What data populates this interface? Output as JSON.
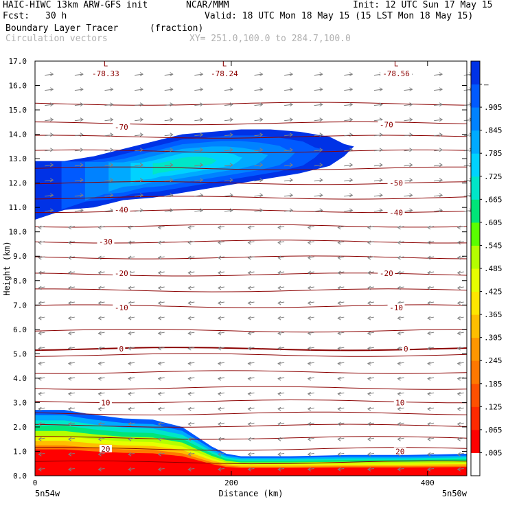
{
  "header": {
    "model": "HAIC-HIWC 13km ARW-GFS init",
    "org": "NCAR/MMM",
    "init": "Init: 12 UTC Sun 17 May 15",
    "fcst_label": "Fcst:",
    "fcst_value": "30 h",
    "valid": "Valid: 18 UTC Mon 18 May 15 (15 LST Mon 18 May 15)",
    "field": "Boundary Layer Tracer",
    "units": "(fraction)",
    "vectors": "Circulation vectors",
    "xy": "XY= 251.0,100.0 to 284.7,100.0"
  },
  "colors": {
    "contour": "#8b0000",
    "vector": "#7f7f7f",
    "colorbar": [
      "#ffffff",
      "#ff0000",
      "#ff2a00",
      "#ff5000",
      "#ff7800",
      "#ff9600",
      "#ffbe00",
      "#ffe600",
      "#e6ff00",
      "#b4ff00",
      "#5aff00",
      "#00e678",
      "#00e6c8",
      "#00d2ff",
      "#00aaff",
      "#0082ff",
      "#005aff",
      "#0032e6"
    ]
  },
  "chart_data": {
    "type": "heatmap",
    "title": "Boundary Layer Tracer",
    "ylabel": "Height (km)",
    "xlabel": "Distance (km)",
    "xlim": [
      0,
      440
    ],
    "ylim": [
      0,
      17
    ],
    "x_ticks": [
      "0",
      "200",
      "400"
    ],
    "x_endpoints": [
      "5n54w",
      "5n50w"
    ],
    "y_ticks": [
      "0.0",
      "1.0",
      "2.0",
      "3.0",
      "4.0",
      "5.0",
      "6.0",
      "7.0",
      "8.0",
      "9.0",
      "10.0",
      "11.0",
      "12.0",
      "13.0",
      "14.0",
      "15.0",
      "16.0",
      "17.0"
    ],
    "colorbar_labels": [
      ".005",
      ".065",
      ".125",
      ".185",
      ".245",
      ".305",
      ".365",
      ".425",
      ".485",
      ".545",
      ".605",
      ".665",
      ".725",
      ".785",
      ".845",
      ".905",
      "–"
    ],
    "contour_labels": [
      {
        "text": "-78.33",
        "x": 72,
        "y": 16.5
      },
      {
        "text": "-78.24",
        "x": 193,
        "y": 16.5
      },
      {
        "text": "-78.56",
        "x": 368,
        "y": 16.5
      },
      {
        "text": "L",
        "x": 72,
        "y": 16.9
      },
      {
        "text": "L",
        "x": 193,
        "y": 16.9
      },
      {
        "text": "L",
        "x": 368,
        "y": 16.9
      },
      {
        "text": "-70",
        "x": 88,
        "y": 14.3
      },
      {
        "text": "-70",
        "x": 358,
        "y": 14.4
      },
      {
        "text": "-50",
        "x": 368,
        "y": 12.0
      },
      {
        "text": "-40",
        "x": 88,
        "y": 10.9
      },
      {
        "text": "-40",
        "x": 368,
        "y": 10.8
      },
      {
        "text": "-30",
        "x": 72,
        "y": 9.6
      },
      {
        "text": "-20",
        "x": 88,
        "y": 8.3
      },
      {
        "text": "-20",
        "x": 358,
        "y": 8.3
      },
      {
        "text": "-10",
        "x": 88,
        "y": 6.9
      },
      {
        "text": "-10",
        "x": 368,
        "y": 6.9
      },
      {
        "text": "0",
        "x": 88,
        "y": 5.2
      },
      {
        "text": "0",
        "x": 378,
        "y": 5.2
      },
      {
        "text": "10",
        "x": 72,
        "y": 3.0
      },
      {
        "text": "10",
        "x": 372,
        "y": 3.0
      },
      {
        "text": "20",
        "x": 72,
        "y": 1.1
      },
      {
        "text": "20",
        "x": 372,
        "y": 1.0
      }
    ],
    "contour_levels_y": [
      0.55,
      1.1,
      1.55,
      2.05,
      2.55,
      3.05,
      3.6,
      4.25,
      4.95,
      5.2,
      5.95,
      6.95,
      7.6,
      8.25,
      8.95,
      9.6,
      10.25,
      10.85,
      11.4,
      12.0,
      12.6,
      13.3,
      13.9,
      14.45,
      15.25
    ],
    "plume_upper": {
      "x": [
        0,
        30,
        60,
        90,
        120,
        150,
        180,
        210,
        240,
        270,
        300,
        315,
        325,
        315,
        300,
        270,
        240,
        210,
        180,
        150,
        120,
        90,
        60,
        30,
        0
      ],
      "y": [
        12.9,
        12.9,
        13.1,
        13.4,
        13.7,
        14.0,
        14.1,
        14.2,
        14.2,
        14.1,
        13.9,
        13.6,
        13.5,
        13.1,
        12.7,
        12.4,
        12.2,
        12.0,
        11.8,
        11.6,
        11.4,
        11.3,
        11.0,
        10.9,
        10.5
      ]
    },
    "boundary_layer": {
      "x": [
        0,
        30,
        60,
        90,
        120,
        150,
        165,
        180,
        195,
        210,
        260,
        320,
        380,
        440
      ],
      "top": [
        2.7,
        2.7,
        2.5,
        2.35,
        2.3,
        2.0,
        1.6,
        1.2,
        0.9,
        0.8,
        0.8,
        0.85,
        0.85,
        0.9
      ]
    }
  }
}
